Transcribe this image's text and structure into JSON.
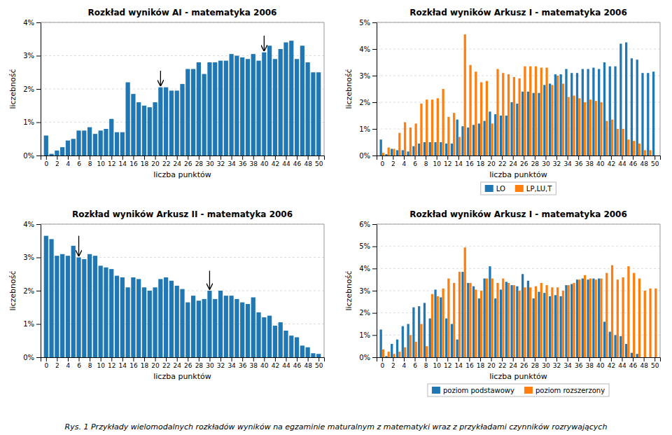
{
  "caption": "Rys. 1 Przykłady  wielomodalnych rozkładów wyników na egzaminie maturalnym z matematyki wraz z przykładami  czynników  rozrywających",
  "chart_data": [
    {
      "type": "bar",
      "title": "Rozkład wyników AI - matematyka 2006",
      "x_label": "liczba punktów",
      "y_label": "liczebność",
      "x": [
        0,
        1,
        2,
        3,
        4,
        5,
        6,
        7,
        8,
        9,
        10,
        11,
        12,
        13,
        14,
        15,
        16,
        17,
        18,
        19,
        20,
        21,
        22,
        23,
        24,
        25,
        26,
        27,
        28,
        29,
        30,
        31,
        32,
        33,
        34,
        35,
        36,
        37,
        38,
        39,
        40,
        41,
        42,
        43,
        44,
        45,
        46,
        47,
        48,
        49,
        50
      ],
      "values": [
        0.6,
        0.05,
        0.15,
        0.25,
        0.45,
        0.5,
        0.75,
        0.75,
        0.85,
        0.65,
        0.75,
        0.8,
        1.1,
        0.7,
        0.7,
        2.2,
        1.85,
        1.6,
        1.5,
        1.45,
        1.6,
        2.05,
        2.05,
        1.95,
        1.95,
        2.15,
        2.6,
        2.6,
        2.8,
        2.45,
        2.8,
        2.8,
        2.85,
        2.85,
        3.05,
        3.0,
        2.95,
        2.9,
        3.05,
        2.85,
        3.1,
        3.3,
        2.9,
        3.2,
        3.4,
        3.45,
        2.9,
        3.3,
        2.8,
        2.5,
        2.5
      ],
      "annotations": [
        {
          "type": "arrow",
          "x": 21,
          "y_tip": 2.1,
          "y_tail": 2.55
        },
        {
          "type": "arrow",
          "x": 40,
          "y_tip": 3.15,
          "y_tail": 3.6
        }
      ],
      "xlim": [
        -1,
        51
      ],
      "xticks": [
        0,
        2,
        4,
        6,
        8,
        10,
        12,
        14,
        16,
        18,
        20,
        22,
        24,
        26,
        28,
        30,
        32,
        34,
        36,
        38,
        40,
        42,
        44,
        46,
        48,
        50
      ],
      "ylim": [
        0,
        4
      ],
      "yticks": [
        {
          "value": 0,
          "label": "0%"
        },
        {
          "value": 1,
          "label": "1%"
        },
        {
          "value": 2,
          "label": "2%"
        },
        {
          "value": 3,
          "label": "3%"
        },
        {
          "value": 4,
          "label": "4%"
        }
      ],
      "grid": true
    },
    {
      "type": "bar",
      "title": "Rozkład wyników Arkusz I - matematyka 2006",
      "x_label": "liczba punktów",
      "y_label": "liczebność",
      "x": [
        0,
        1,
        2,
        3,
        4,
        5,
        6,
        7,
        8,
        9,
        10,
        11,
        12,
        13,
        14,
        15,
        16,
        17,
        18,
        19,
        20,
        21,
        22,
        23,
        24,
        25,
        26,
        27,
        28,
        29,
        30,
        31,
        32,
        33,
        34,
        35,
        36,
        37,
        38,
        39,
        40,
        41,
        42,
        43,
        44,
        45,
        46,
        47,
        48,
        49,
        50
      ],
      "series": [
        {
          "name": "LO",
          "values": [
            0.6,
            0.05,
            0.25,
            0.2,
            0.2,
            0.15,
            0.35,
            0.45,
            0.5,
            0.5,
            0.5,
            0.5,
            0.45,
            0.45,
            1.35,
            1.1,
            1.05,
            1.15,
            1.2,
            1.3,
            1.65,
            1.55,
            1.5,
            1.5,
            2.0,
            1.95,
            2.4,
            2.4,
            2.35,
            2.35,
            2.65,
            2.7,
            3.05,
            3.05,
            3.25,
            3.1,
            3.1,
            3.25,
            3.25,
            3.3,
            3.25,
            3.5,
            3.35,
            3.35,
            4.2,
            4.25,
            3.65,
            3.6,
            3.1,
            3.1,
            3.15
          ]
        },
        {
          "name": "LP,LU,T",
          "values": [
            0.1,
            0.3,
            0.25,
            0.85,
            1.25,
            1.05,
            1.2,
            1.95,
            2.1,
            2.1,
            2.15,
            2.5,
            1.45,
            1.6,
            0.7,
            4.55,
            3.4,
            3.15,
            2.75,
            2.8,
            1.2,
            3.25,
            3.1,
            3.05,
            2.95,
            2.9,
            3.35,
            3.35,
            3.35,
            3.3,
            3.3,
            2.65,
            3.0,
            2.7,
            2.2,
            2.25,
            2.15,
            2.0,
            2.1,
            2.05,
            2.0,
            1.3,
            1.35,
            1.0,
            1.0,
            0.6,
            0.55,
            0.45,
            0.2,
            0.2,
            0.0
          ]
        }
      ],
      "xlim": [
        -1,
        51
      ],
      "xticks": [
        0,
        2,
        4,
        6,
        8,
        10,
        12,
        14,
        16,
        18,
        20,
        22,
        24,
        26,
        28,
        30,
        32,
        34,
        36,
        38,
        40,
        42,
        44,
        46,
        48,
        50
      ],
      "ylim": [
        0,
        5
      ],
      "yticks": [
        {
          "value": 0,
          "label": "0%"
        },
        {
          "value": 1,
          "label": "1%"
        },
        {
          "value": 2,
          "label": "2%"
        },
        {
          "value": 3,
          "label": "3%"
        },
        {
          "value": 4,
          "label": "4%"
        },
        {
          "value": 5,
          "label": "5%"
        }
      ],
      "grid": true,
      "legend": "lower center"
    },
    {
      "type": "bar",
      "title": "Rozkład wyników Arkusz II - matematyka 2006",
      "x_label": "liczba punktów",
      "y_label": "liczebność",
      "x": [
        0,
        1,
        2,
        3,
        4,
        5,
        6,
        7,
        8,
        9,
        10,
        11,
        12,
        13,
        14,
        15,
        16,
        17,
        18,
        19,
        20,
        21,
        22,
        23,
        24,
        25,
        26,
        27,
        28,
        29,
        30,
        31,
        32,
        33,
        34,
        35,
        36,
        37,
        38,
        39,
        40,
        41,
        42,
        43,
        44,
        45,
        46,
        47,
        48,
        49,
        50
      ],
      "values": [
        3.65,
        3.55,
        3.05,
        3.1,
        3.05,
        3.35,
        3.0,
        2.95,
        3.1,
        3.05,
        2.75,
        2.7,
        2.65,
        2.45,
        2.4,
        2.1,
        2.4,
        2.35,
        2.1,
        2.0,
        2.1,
        2.35,
        2.4,
        2.3,
        2.15,
        2.05,
        1.65,
        1.85,
        1.7,
        1.75,
        2.0,
        1.75,
        2.0,
        1.85,
        1.85,
        1.75,
        1.65,
        1.6,
        1.8,
        1.35,
        1.2,
        1.25,
        0.95,
        1.05,
        0.8,
        0.65,
        0.6,
        0.35,
        0.3,
        0.12,
        0.1
      ],
      "annotations": [
        {
          "type": "arrow",
          "x": 6,
          "y_tip": 3.05,
          "y_tail": 3.65
        },
        {
          "type": "arrow",
          "x": 30,
          "y_tip": 2.05,
          "y_tail": 2.6
        }
      ],
      "xlim": [
        -1,
        51
      ],
      "xticks": [
        0,
        2,
        4,
        6,
        8,
        10,
        12,
        14,
        16,
        18,
        20,
        22,
        24,
        26,
        28,
        30,
        32,
        34,
        36,
        38,
        40,
        42,
        44,
        46,
        48,
        50
      ],
      "ylim": [
        0,
        4
      ],
      "yticks": [
        {
          "value": 0,
          "label": "0%"
        },
        {
          "value": 1,
          "label": "1%"
        },
        {
          "value": 2,
          "label": "2%"
        },
        {
          "value": 3,
          "label": "3%"
        },
        {
          "value": 4,
          "label": "4%"
        }
      ],
      "grid": true
    },
    {
      "type": "bar",
      "title": "Rozkład wyników Arkusz I - matematyka 2006",
      "x_label": "liczba punktów",
      "y_label": "liczebność",
      "x": [
        0,
        1,
        2,
        3,
        4,
        5,
        6,
        7,
        8,
        9,
        10,
        11,
        12,
        13,
        14,
        15,
        16,
        17,
        18,
        19,
        20,
        21,
        22,
        23,
        24,
        25,
        26,
        27,
        28,
        29,
        30,
        31,
        32,
        33,
        34,
        35,
        36,
        37,
        38,
        39,
        40,
        41,
        42,
        43,
        44,
        45,
        46,
        47,
        48,
        49,
        50
      ],
      "series": [
        {
          "name": "poziom podstawowy",
          "values": [
            1.25,
            0.05,
            0.6,
            0.8,
            1.4,
            1.5,
            2.25,
            2.3,
            2.45,
            1.75,
            3.05,
            2.7,
            1.75,
            1.5,
            0.8,
            3.85,
            3.35,
            3.2,
            2.65,
            3.55,
            4.1,
            2.65,
            3.05,
            3.4,
            3.25,
            3.2,
            3.75,
            3.45,
            2.65,
            2.95,
            2.9,
            2.75,
            2.8,
            2.75,
            3.25,
            3.3,
            3.5,
            3.55,
            3.5,
            3.55,
            3.55,
            1.6,
            1.15,
            1.0,
            0.95,
            0.6,
            0.2,
            0.15,
            0.0,
            0.0,
            0.0
          ]
        },
        {
          "name": "poziom rozszerzony",
          "values": [
            0.35,
            0.25,
            0.15,
            0.25,
            0.45,
            1.0,
            0.7,
            1.5,
            0.5,
            2.85,
            2.75,
            3.1,
            3.55,
            3.35,
            3.85,
            4.95,
            3.35,
            3.05,
            3.0,
            3.55,
            3.55,
            3.35,
            3.55,
            3.35,
            3.25,
            3.0,
            3.15,
            3.15,
            3.2,
            3.35,
            3.25,
            3.15,
            3.15,
            3.0,
            3.25,
            3.35,
            3.5,
            3.7,
            3.55,
            3.5,
            3.55,
            3.8,
            4.15,
            3.5,
            3.6,
            4.1,
            3.8,
            3.55,
            3.0,
            3.1,
            3.1
          ]
        }
      ],
      "xlim": [
        -1,
        51
      ],
      "xticks": [
        0,
        2,
        4,
        6,
        8,
        10,
        12,
        14,
        16,
        18,
        20,
        22,
        24,
        26,
        28,
        30,
        32,
        34,
        36,
        38,
        40,
        42,
        44,
        46,
        48,
        50
      ],
      "ylim": [
        0,
        6
      ],
      "yticks": [
        {
          "value": 0,
          "label": "0%"
        },
        {
          "value": 1,
          "label": "1%"
        },
        {
          "value": 2,
          "label": "2%"
        },
        {
          "value": 3,
          "label": "3%"
        },
        {
          "value": 4,
          "label": "4%"
        },
        {
          "value": 5,
          "label": "5%"
        },
        {
          "value": 6,
          "label": "6%"
        }
      ],
      "grid": true,
      "legend": "lower center"
    }
  ]
}
